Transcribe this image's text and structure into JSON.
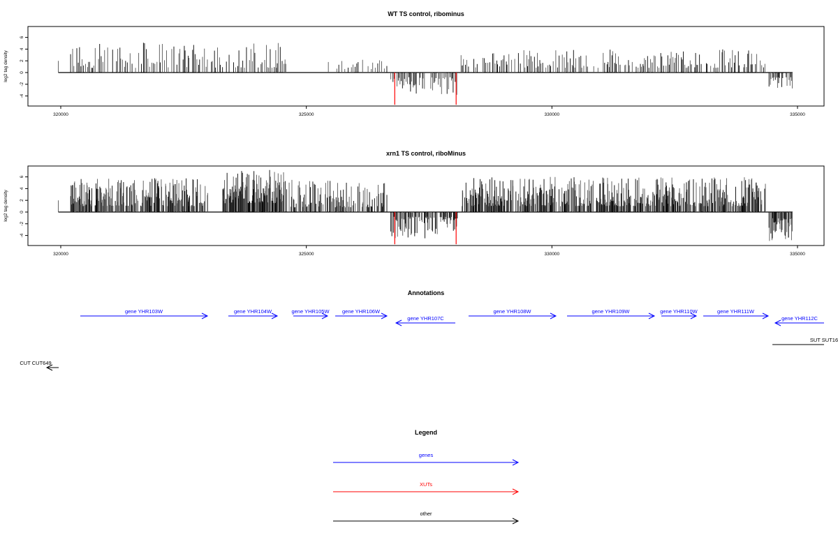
{
  "chart_data": [
    {
      "type": "bar",
      "title": "WT TS control, ribominus",
      "ylabel": "log2 tag density",
      "xlim": [
        319330,
        335540
      ],
      "ylim": [
        -5.7,
        7.9
      ],
      "xticks": [
        320000,
        325000,
        330000,
        335000
      ],
      "yticks": [
        6,
        4,
        2,
        0,
        -2,
        -4
      ],
      "regions": [
        {
          "start": 319950,
          "end": 319960,
          "min": 2,
          "max": 2,
          "step": 20
        },
        {
          "start": 320200,
          "end": 324600,
          "min": 0.8,
          "max": 5.2,
          "step": 30
        },
        {
          "start": 325400,
          "end": 326650,
          "min": 0.6,
          "max": 2.2,
          "step": 45
        },
        {
          "start": 326720,
          "end": 328080,
          "min": -4.0,
          "max": -0.8,
          "step": 22
        },
        {
          "start": 328150,
          "end": 334350,
          "min": 0.8,
          "max": 4.0,
          "step": 28
        },
        {
          "start": 334420,
          "end": 334900,
          "min": -3.0,
          "max": -0.8,
          "step": 18
        }
      ],
      "highlight_positions": [
        326800,
        328050
      ],
      "highlight_value": -5.5,
      "highlight_color": "#ff0000"
    },
    {
      "type": "bar",
      "title": "xrn1 TS control, riboMinus",
      "ylabel": "log2 tag density",
      "xlim": [
        319330,
        335540
      ],
      "ylim": [
        -5.7,
        7.9
      ],
      "xticks": [
        320000,
        325000,
        330000,
        335000
      ],
      "yticks": [
        6,
        4,
        2,
        0,
        -2,
        -4
      ],
      "regions": [
        {
          "start": 319950,
          "end": 319960,
          "min": 2,
          "max": 2,
          "step": 20
        },
        {
          "start": 320200,
          "end": 323000,
          "min": 1.0,
          "max": 5.8,
          "step": 10
        },
        {
          "start": 323300,
          "end": 324600,
          "min": 1.5,
          "max": 7.2,
          "step": 8
        },
        {
          "start": 324650,
          "end": 326650,
          "min": 0.8,
          "max": 5.5,
          "step": 14
        },
        {
          "start": 326720,
          "end": 328080,
          "min": -4.5,
          "max": -0.8,
          "step": 12
        },
        {
          "start": 328150,
          "end": 334350,
          "min": 1.0,
          "max": 6.0,
          "step": 10
        },
        {
          "start": 334420,
          "end": 334900,
          "min": -5.0,
          "max": -1.0,
          "step": 10
        }
      ],
      "highlight_positions": [
        326800,
        328050
      ],
      "highlight_value": -5.5,
      "highlight_color": "#ff0000"
    }
  ],
  "annotations": {
    "title": "Annotations",
    "features": [
      {
        "label": "gene YHR103W",
        "start": 320398,
        "end": 322986,
        "strand": "+",
        "type": "gene",
        "row": 0
      },
      {
        "label": "gene YHR104W",
        "start": 323412,
        "end": 324408,
        "strand": "+",
        "type": "gene",
        "row": 0
      },
      {
        "label": "gene YHR105W",
        "start": 324735,
        "end": 325431,
        "strand": "+",
        "type": "gene",
        "row": 0
      },
      {
        "label": "gene YHR106W",
        "start": 325588,
        "end": 326640,
        "strand": "+",
        "type": "gene",
        "row": 0
      },
      {
        "label": "gene YHR107C",
        "start": 326825,
        "end": 328033,
        "strand": "-",
        "type": "gene",
        "row": 1
      },
      {
        "label": "gene YHR108W",
        "start": 328303,
        "end": 330080,
        "strand": "+",
        "type": "gene",
        "row": 0
      },
      {
        "label": "gene YHR109W",
        "start": 330308,
        "end": 332085,
        "strand": "+",
        "type": "gene",
        "row": 0
      },
      {
        "label": "gene YHR110W",
        "start": 332227,
        "end": 332938,
        "strand": "+",
        "type": "gene",
        "row": 0
      },
      {
        "label": "gene YHR111W",
        "start": 333081,
        "end": 334403,
        "strand": "+",
        "type": "gene",
        "row": 0
      },
      {
        "label": "gene YHR112C",
        "start": 334545,
        "end": 335540,
        "strand": "-",
        "type": "gene",
        "row": 1
      },
      {
        "label": "SUT SUT16",
        "start": 334489,
        "end": 335540,
        "strand": ".",
        "type": "other",
        "row": 2
      },
      {
        "label": "CUT CUT649",
        "start": 319716,
        "end": 319958,
        "strand": "-",
        "type": "other",
        "row": 3
      }
    ]
  },
  "legend": {
    "title": "Legend",
    "items": [
      {
        "label": "genes",
        "color": "#0000ff"
      },
      {
        "label": "XUTs",
        "color": "#ff0000"
      },
      {
        "label": "other",
        "color": "#000000"
      }
    ]
  }
}
